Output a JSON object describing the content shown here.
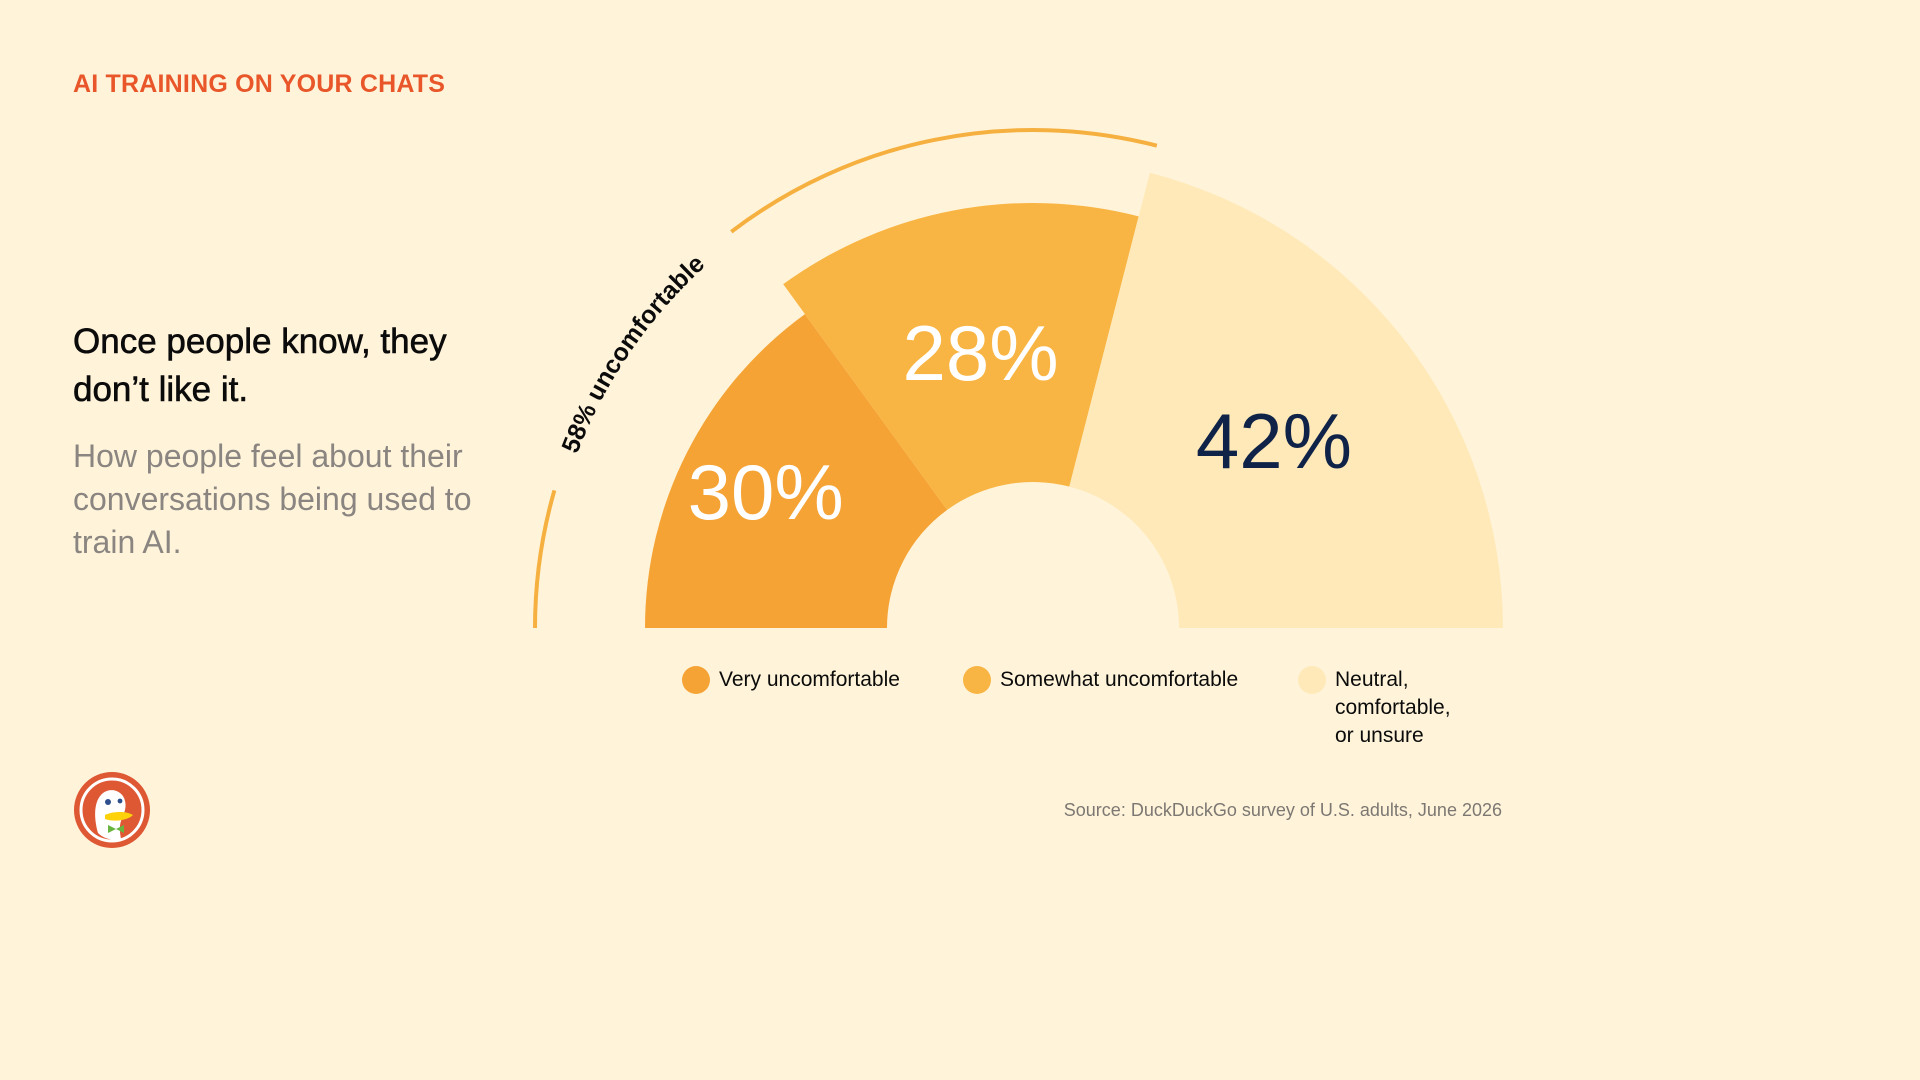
{
  "header": {
    "eyebrow": "AI TRAINING ON YOUR CHATS",
    "headline": "Once people know, they don’t like it.",
    "subhead": "How people feel about their conversations being used to train AI."
  },
  "chart_data": {
    "type": "pie",
    "variant": "semicircle-donut",
    "series": [
      {
        "name": "Very uncomfortable",
        "value": 30,
        "label": "30%",
        "color": "#F5A334",
        "label_color": "#FFFFFF"
      },
      {
        "name": "Somewhat uncomfortable",
        "value": 28,
        "label": "28%",
        "color": "#F9B544",
        "label_color": "#FFFFFF"
      },
      {
        "name": "Neutral,\ncomfortable,\nor unsure",
        "value": 42,
        "label": "42%",
        "color": "#FFE9B8",
        "label_color": "#0E2347"
      }
    ],
    "annotation": {
      "text": "58% uncomfortable",
      "value": 58,
      "color": "#F6B040"
    },
    "legend_position": "bottom"
  },
  "footer": {
    "source": "Source: DuckDuckGo survey of U.S. adults, June 2026",
    "logo_icon": "duckduckgo-logo-icon"
  },
  "colors": {
    "background": "#FFF4DA",
    "accent": "#E8562A"
  }
}
